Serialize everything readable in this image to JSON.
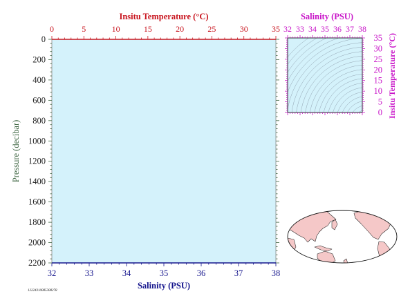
{
  "chart_data": [
    {
      "type": "line",
      "panel": "profile",
      "series": [],
      "x_top": {
        "label": "Insitu Temperature (°C)",
        "range": [
          0,
          35
        ],
        "ticks": [
          0,
          5,
          10,
          15,
          20,
          25,
          30,
          35
        ],
        "color": "#c8141e"
      },
      "x_bottom": {
        "label": "Salinity (PSU)",
        "range": [
          32,
          38
        ],
        "ticks": [
          32,
          33,
          34,
          35,
          36,
          37,
          38
        ],
        "color": "#14148c"
      },
      "y": {
        "label": "Pressure (decibar)",
        "range": [
          0,
          2200
        ],
        "inverted": true,
        "ticks": [
          0,
          200,
          400,
          600,
          800,
          1000,
          1200,
          1400,
          1600,
          1800,
          2000,
          2200
        ],
        "color": "#3c6440"
      },
      "background_color": "#d4f2fb",
      "grid": false
    },
    {
      "type": "scatter",
      "panel": "ts-diagram",
      "series": [],
      "x": {
        "label": "Salinity (PSU)",
        "range": [
          32,
          38
        ],
        "ticks": [
          32,
          33,
          34,
          35,
          36,
          37,
          38
        ],
        "color": "#c814c8"
      },
      "y": {
        "label": "Insitu Temperature (°C)",
        "range": [
          0,
          35
        ],
        "ticks": [
          0,
          5,
          10,
          15,
          20,
          25,
          30,
          35
        ],
        "color": "#c814c8"
      },
      "density_contours": true,
      "background_color": "#d4f2fb"
    }
  ],
  "map": {
    "projection": "world-pacific-centered",
    "land_color": "#f5c8c8",
    "ocean_color": "#ffffff"
  },
  "station_id": "12224310085308278"
}
